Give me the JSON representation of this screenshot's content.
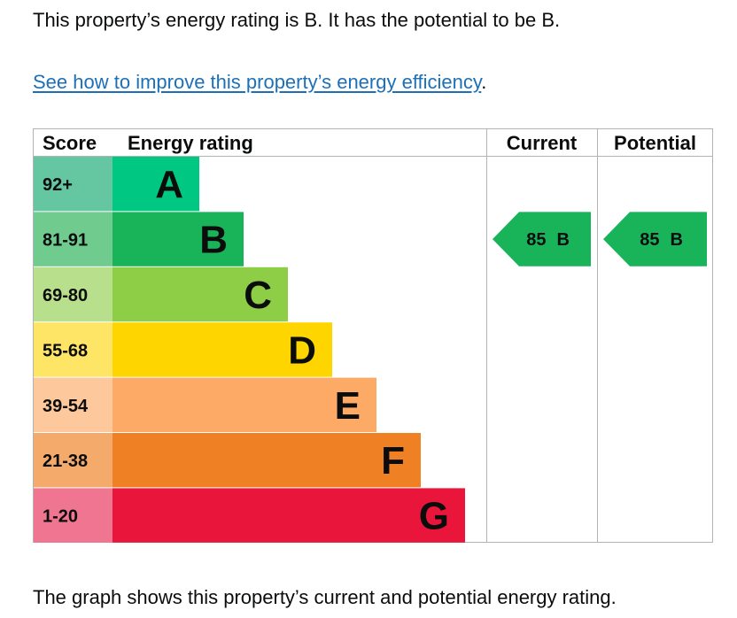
{
  "intro_text": "This property’s energy rating is B. It has the potential to be B.",
  "improve_link": "See how to improve this property’s energy efficiency",
  "improve_link_suffix": ".",
  "caption": "The graph shows this property’s current and potential energy rating.",
  "chart_data": {
    "type": "bar",
    "headers": {
      "score": "Score",
      "rating": "Energy rating",
      "current": "Current",
      "potential": "Potential"
    },
    "bands": [
      {
        "letter": "A",
        "score_range": "92+",
        "color": "#00c781",
        "score_color": "#64c7a2"
      },
      {
        "letter": "B",
        "score_range": "81-91",
        "color": "#19b459",
        "score_color": "#6fcb8e"
      },
      {
        "letter": "C",
        "score_range": "69-80",
        "color": "#8dce46",
        "score_color": "#b8e08c"
      },
      {
        "letter": "D",
        "score_range": "55-68",
        "color": "#ffd500",
        "score_color": "#ffe566"
      },
      {
        "letter": "E",
        "score_range": "39-54",
        "color": "#fcaa65",
        "score_color": "#fdc89b"
      },
      {
        "letter": "F",
        "score_range": "21-38",
        "color": "#ef8023",
        "score_color": "#f4aa6b"
      },
      {
        "letter": "G",
        "score_range": "1-20",
        "color": "#e9153b",
        "score_color": "#f07590"
      }
    ],
    "current": {
      "score": "85",
      "letter": "B",
      "color": "#19b459"
    },
    "potential": {
      "score": "85",
      "letter": "B",
      "color": "#19b459"
    }
  }
}
